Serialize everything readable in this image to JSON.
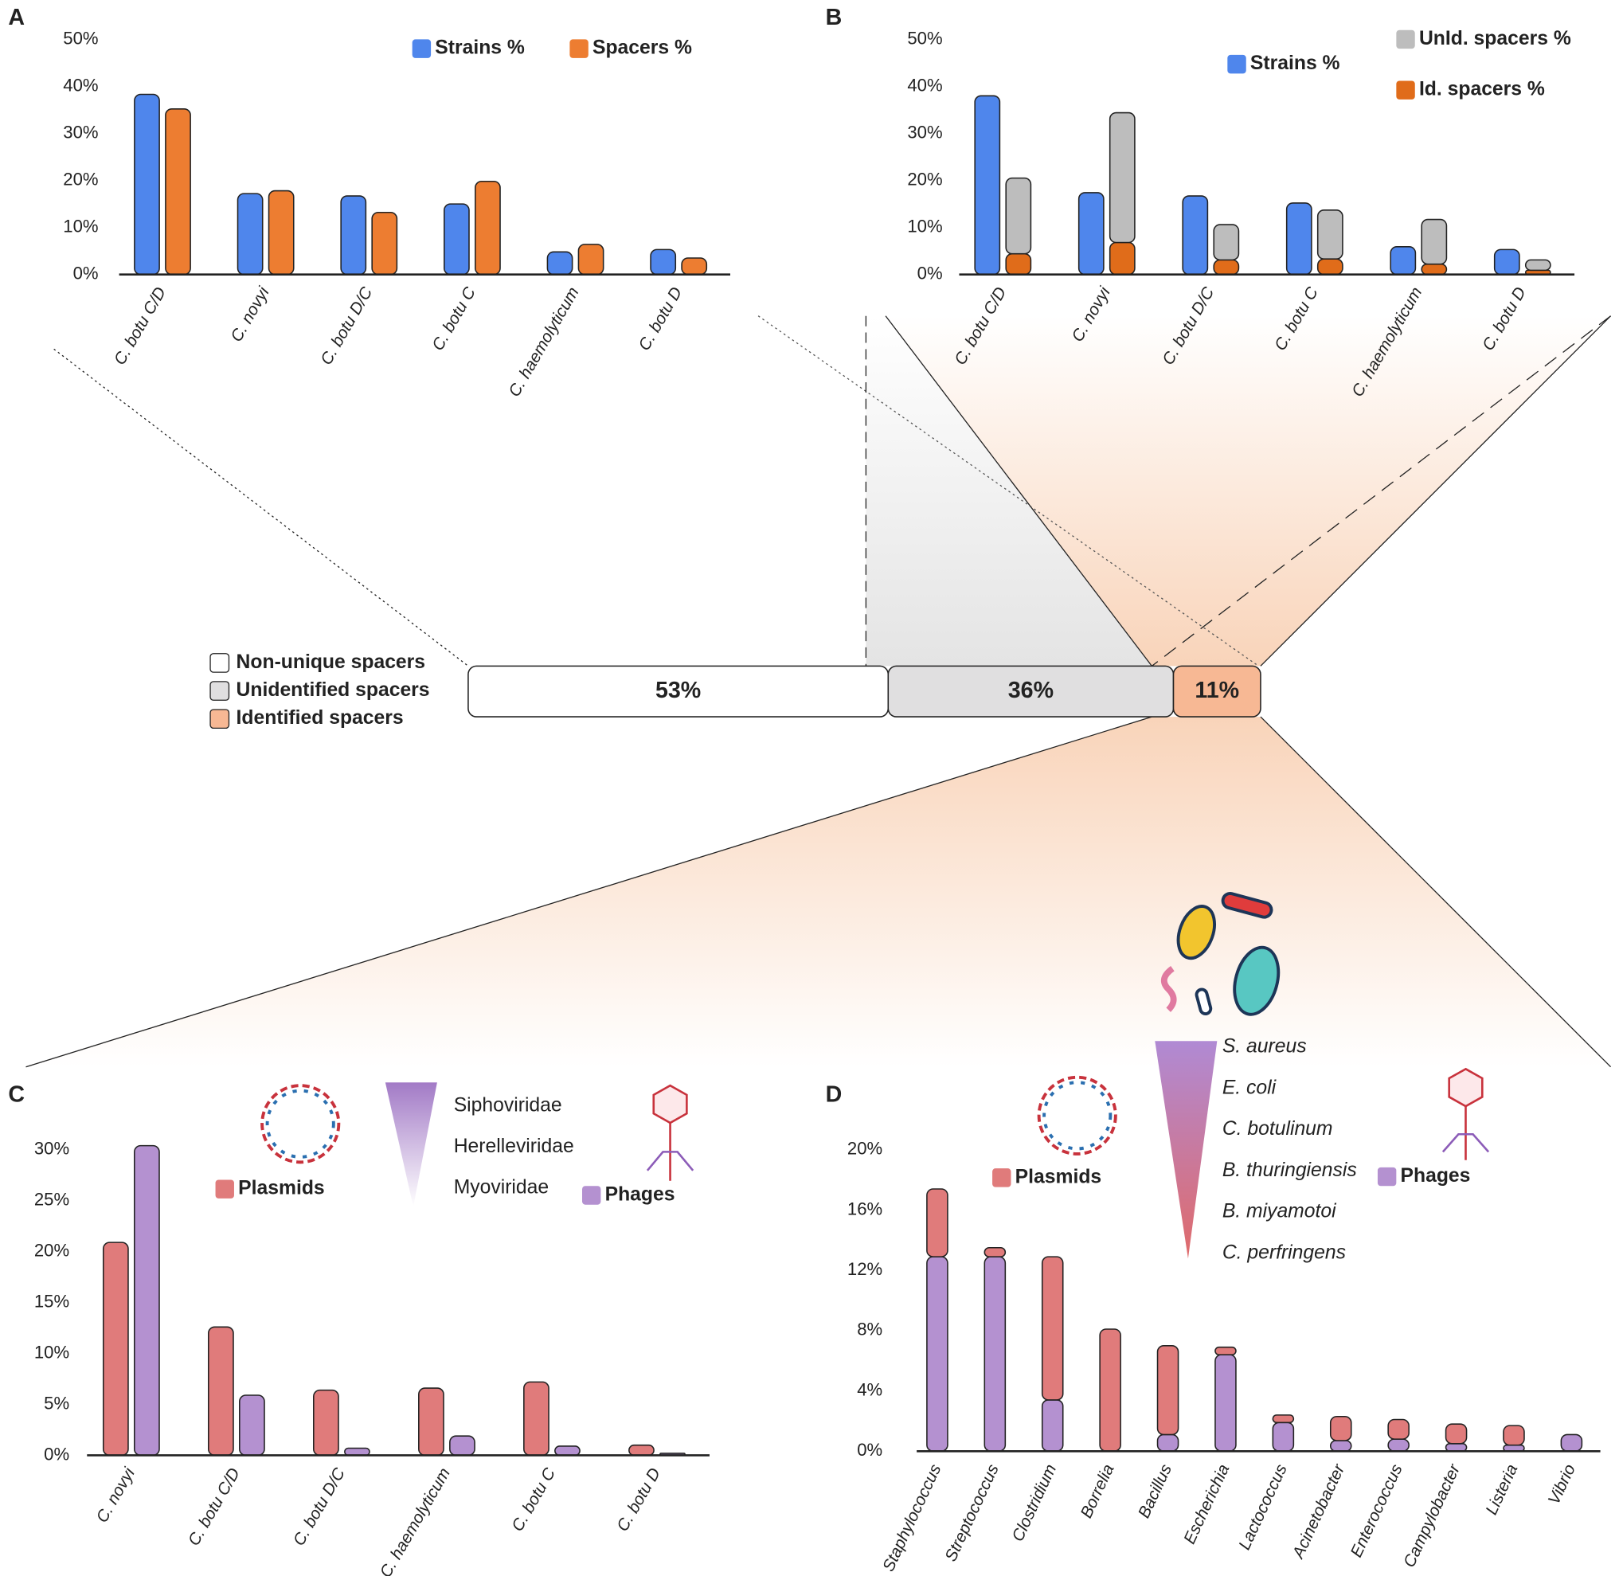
{
  "chart_data": [
    {
      "type": "bar",
      "panel": "A",
      "categories": [
        "C. botu C/D",
        "C. novyi",
        "C. botu D/C",
        "C. botu C",
        "C. haemolyticum",
        "C. botu D"
      ],
      "series": [
        {
          "name": "Strains %",
          "color": "#4f86ec",
          "values": [
            38.3,
            17.2,
            16.7,
            15.0,
            4.8,
            5.3
          ]
        },
        {
          "name": "Spacers %",
          "color": "#ed7d31",
          "values": [
            35.2,
            17.8,
            13.2,
            19.8,
            6.4,
            3.5
          ]
        }
      ],
      "ylim": [
        0,
        50
      ],
      "yticks": [
        {
          "value": 0,
          "label": "0%"
        },
        {
          "value": 10,
          "label": "10%"
        },
        {
          "value": 20,
          "label": "20%"
        },
        {
          "value": 30,
          "label": "30%"
        },
        {
          "value": 40,
          "label": "40%"
        },
        {
          "value": 50,
          "label": "50%"
        }
      ]
    },
    {
      "type": "grouped-stacked",
      "panel": "B",
      "categories": [
        "C. botu C/D",
        "C. novyi",
        "C. botu D/C",
        "C. botu C",
        "C. haemolyticum",
        "C. botu D"
      ],
      "series": [
        {
          "name": "Strains %",
          "color": "#4f86ec",
          "group": 0,
          "values": [
            38.0,
            17.4,
            16.7,
            15.2,
            5.9,
            5.3
          ]
        },
        {
          "name": "Id. spacers %",
          "color": "#e06c1a",
          "group": 1,
          "values": [
            4.4,
            6.8,
            3.1,
            3.3,
            2.2,
            0.9
          ]
        },
        {
          "name": "UnId. spacers %",
          "color": "#bdbdbd",
          "group": 1,
          "values": [
            16.1,
            27.6,
            7.5,
            10.4,
            9.5,
            2.2
          ]
        }
      ],
      "ylim": [
        0,
        50
      ],
      "yticks": [
        {
          "value": 0,
          "label": "0%"
        },
        {
          "value": 10,
          "label": "10%"
        },
        {
          "value": 20,
          "label": "20%"
        },
        {
          "value": 30,
          "label": "30%"
        },
        {
          "value": 40,
          "label": "40%"
        },
        {
          "value": 50,
          "label": "50%"
        }
      ]
    },
    {
      "type": "bar",
      "panel": "C",
      "categories": [
        "C. novyi",
        "C. botu C/D",
        "C. botu D/C",
        "C. haemolyticum",
        "C. botu C",
        "C. botu D"
      ],
      "series": [
        {
          "name": "Plasmids",
          "color": "#e07b7b",
          "values": [
            20.9,
            12.6,
            6.4,
            6.6,
            7.2,
            1.0
          ]
        },
        {
          "name": "Phages",
          "color": "#b491d0",
          "values": [
            30.4,
            5.9,
            0.7,
            1.9,
            0.9,
            0.2
          ]
        }
      ],
      "families": [
        "Siphoviridae",
        "Herelleviridae",
        "Myoviridae"
      ],
      "ylim": [
        0,
        30
      ],
      "yticks": [
        {
          "value": 0,
          "label": "0%"
        },
        {
          "value": 5,
          "label": "5%"
        },
        {
          "value": 10,
          "label": "10%"
        },
        {
          "value": 15,
          "label": "15%"
        },
        {
          "value": 20,
          "label": "20%"
        },
        {
          "value": 25,
          "label": "25%"
        },
        {
          "value": 30,
          "label": "30%"
        }
      ]
    },
    {
      "type": "stacked",
      "panel": "D",
      "categories": [
        "Staphylococcus",
        "Streptococcus",
        "Clostridium",
        "Borrelia",
        "Bacillus",
        "Escherichia",
        "Lactococcus",
        "Acinetobacter",
        "Enterococcus",
        "Campylobacter",
        "Listeria",
        "Vibrio"
      ],
      "series": [
        {
          "name": "Phages",
          "color": "#b491d0",
          "values": [
            12.9,
            12.9,
            3.4,
            0,
            1.1,
            6.4,
            1.9,
            0.7,
            0.8,
            0.5,
            0.4,
            1.1
          ]
        },
        {
          "name": "Plasmids",
          "color": "#e07b7b",
          "values": [
            4.5,
            0.6,
            9.5,
            8.1,
            5.9,
            0.5,
            0.5,
            1.6,
            1.3,
            1.3,
            1.3,
            0
          ]
        }
      ],
      "species": [
        "S. aureus",
        "E. coli",
        "C. botulinum",
        "B. thuringiensis",
        "B. miyamotoi",
        "C. perfringens"
      ],
      "ylim": [
        0,
        20
      ],
      "yticks": [
        {
          "value": 0,
          "label": "0%"
        },
        {
          "value": 4,
          "label": "4%"
        },
        {
          "value": 8,
          "label": "8%"
        },
        {
          "value": 12,
          "label": "12%"
        },
        {
          "value": 16,
          "label": "16%"
        },
        {
          "value": 20,
          "label": "20%"
        }
      ]
    },
    {
      "type": "percent-bar",
      "categories": [
        "Non-unique spacers",
        "Unidentified spacers",
        "Identified spacers"
      ],
      "colors": [
        "#ffffff",
        "#e0dfe0",
        "#f7b894"
      ],
      "values": [
        53,
        36,
        11
      ],
      "value_labels": [
        "53%",
        "36%",
        "11%"
      ]
    }
  ]
}
